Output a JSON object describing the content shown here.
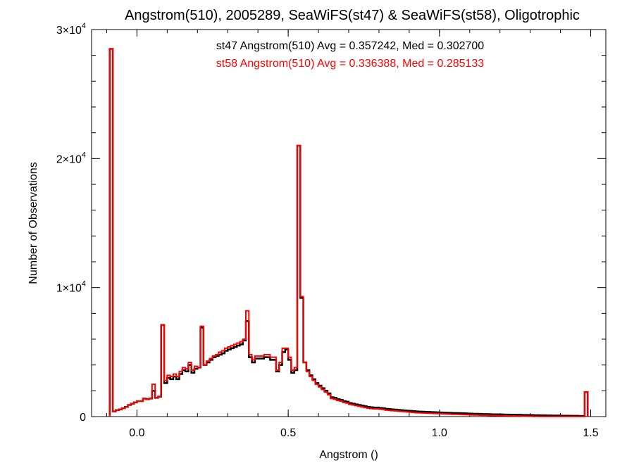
{
  "chart_data": {
    "type": "histogram",
    "title": "Angstrom(510), 2005289, SeaWiFS(st47) & SeaWiFS(st58), Oligotrophic",
    "xlabel": "Angstrom ()",
    "ylabel": "Number of Observations",
    "xlim": [
      -0.15,
      1.55
    ],
    "ylim": [
      0,
      30000
    ],
    "x_ticks": [
      "0.0",
      "0.5",
      "1.0",
      "1.5"
    ],
    "x_tick_values": [
      0.0,
      0.5,
      1.0,
      1.5
    ],
    "y_ticks": [
      {
        "mantissa": "0",
        "exp": ""
      },
      {
        "mantissa": "1×10",
        "exp": "4"
      },
      {
        "mantissa": "2×10",
        "exp": "4"
      },
      {
        "mantissa": "3×10",
        "exp": "4"
      }
    ],
    "y_tick_values": [
      0,
      10000,
      20000,
      30000
    ],
    "bin_width": 0.01,
    "bin_start": -0.09,
    "annotations": [
      {
        "text": "st47 Angstrom(510) Avg = 0.357242, Med = 0.302700",
        "color": "#000000"
      },
      {
        "text": "st58 Angstrom(510) Avg = 0.336388, Med = 0.285133",
        "color": "#ff0000"
      }
    ],
    "series": [
      {
        "color": "#000000",
        "values": [
          28500,
          400,
          500,
          550,
          650,
          750,
          900,
          1000,
          1100,
          1200,
          1200,
          1400,
          1350,
          1400,
          2000,
          1450,
          1550,
          7100,
          2600,
          3000,
          2900,
          3100,
          2900,
          3300,
          3600,
          3500,
          4000,
          3400,
          3700,
          3800,
          6900,
          4000,
          4200,
          4400,
          4600,
          4700,
          4800,
          4900,
          5100,
          5200,
          5300,
          5400,
          5500,
          5600,
          5900,
          7400,
          4600,
          4200,
          4500,
          4500,
          4500,
          4600,
          4600,
          4400,
          4400,
          3500,
          4000,
          5000,
          5200,
          4400,
          3400,
          3600,
          21000,
          9200,
          4200,
          3600,
          3200,
          2900,
          2600,
          2400,
          2200,
          2000,
          1800,
          1500,
          1450,
          1350,
          1300,
          1200,
          1150,
          1050,
          1000,
          950,
          900,
          850,
          800,
          750,
          720,
          700,
          700,
          670,
          650,
          600,
          580,
          560,
          540,
          520,
          500,
          480,
          460,
          440,
          420,
          400,
          390,
          380,
          370,
          360,
          350,
          340,
          330,
          320,
          310,
          300,
          290,
          280,
          280,
          270,
          260,
          250,
          240,
          230,
          220,
          220,
          210,
          200,
          200,
          190,
          180,
          180,
          170,
          170,
          160,
          160,
          150,
          150,
          140,
          140,
          130,
          130,
          120,
          120,
          110,
          110,
          100,
          100,
          90,
          90,
          80,
          80,
          80,
          70,
          70,
          70,
          60,
          60,
          60,
          50,
          50,
          1900
        ]
      },
      {
        "color": "#ff0000",
        "values": [
          28500,
          400,
          500,
          550,
          650,
          750,
          900,
          1000,
          1100,
          1200,
          1200,
          1400,
          1350,
          1400,
          2500,
          1450,
          1550,
          7100,
          2800,
          3200,
          3100,
          3300,
          3100,
          3500,
          3800,
          3700,
          4200,
          3600,
          3900,
          3800,
          7000,
          4000,
          4300,
          4500,
          4700,
          4800,
          5000,
          5100,
          5300,
          5400,
          5500,
          5600,
          5700,
          5800,
          6000,
          8200,
          4800,
          4400,
          4700,
          4700,
          4700,
          4800,
          4800,
          4600,
          4600,
          3600,
          4200,
          5300,
          5300,
          4600,
          3600,
          3800,
          21000,
          9300,
          4200,
          3500,
          3100,
          2800,
          2500,
          2300,
          2100,
          1900,
          1700,
          1400,
          1350,
          1250,
          1200,
          1100,
          1050,
          950,
          900,
          850,
          800,
          750,
          700,
          650,
          620,
          600,
          600,
          570,
          550,
          500,
          480,
          460,
          440,
          420,
          400,
          380,
          360,
          340,
          320,
          300,
          290,
          280,
          270,
          260,
          250,
          240,
          230,
          220,
          210,
          200,
          190,
          180,
          180,
          170,
          160,
          150,
          140,
          130,
          120,
          120,
          110,
          100,
          100,
          90,
          80,
          80,
          70,
          70,
          60,
          60,
          50,
          50,
          40,
          40,
          30,
          30,
          20,
          20,
          10,
          10,
          0,
          0,
          0,
          0,
          0,
          0,
          0,
          0,
          0,
          0,
          0,
          0,
          0,
          0,
          0,
          1900
        ]
      }
    ]
  }
}
